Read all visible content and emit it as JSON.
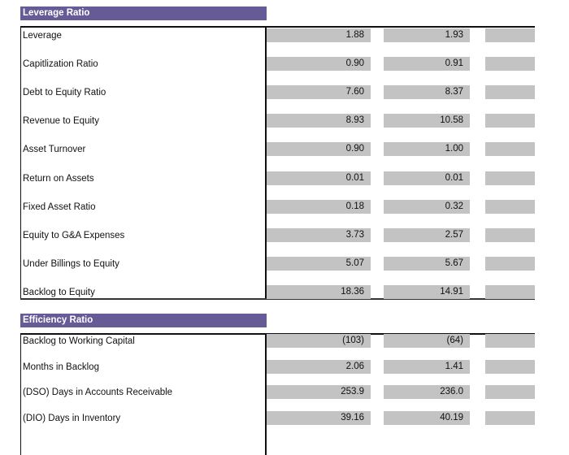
{
  "sections": [
    {
      "title": "Leverage Ratio",
      "rows": [
        {
          "label": "Leverage",
          "v1": "1.88",
          "v2": "1.93"
        },
        {
          "label": "Capitlization Ratio",
          "v1": "0.90",
          "v2": "0.91"
        },
        {
          "label": "Debt to Equity Ratio",
          "v1": "7.60",
          "v2": "8.37"
        },
        {
          "label": "Revenue to Equity",
          "v1": "8.93",
          "v2": "10.58"
        },
        {
          "label": "Asset Turnover",
          "v1": "0.90",
          "v2": "1.00"
        },
        {
          "label": "Return on Assets",
          "v1": "0.01",
          "v2": "0.01"
        },
        {
          "label": "Fixed Asset Ratio",
          "v1": "0.18",
          "v2": "0.32"
        },
        {
          "label": "Equity to G&A Expenses",
          "v1": "3.73",
          "v2": "2.57"
        },
        {
          "label": "Under Billings to Equity",
          "v1": "5.07",
          "v2": "5.67"
        },
        {
          "label": "Backlog to Equity",
          "v1": "18.36",
          "v2": "14.91"
        }
      ]
    },
    {
      "title": "Efficiency Ratio",
      "rows": [
        {
          "label": "Backlog to Working Capital",
          "v1": "(103)",
          "v2": "(64)"
        },
        {
          "label": "Months in Backlog",
          "v1": "2.06",
          "v2": "1.41"
        },
        {
          "label": "(DSO) Days in Accounts Receivable",
          "v1": "253.9",
          "v2": "236.0"
        },
        {
          "label": "(DIO) Days in Inventory",
          "v1": "39.16",
          "v2": "40.19"
        }
      ]
    }
  ],
  "colors": {
    "header": "#665b96",
    "cell": "#c3c3c3"
  }
}
